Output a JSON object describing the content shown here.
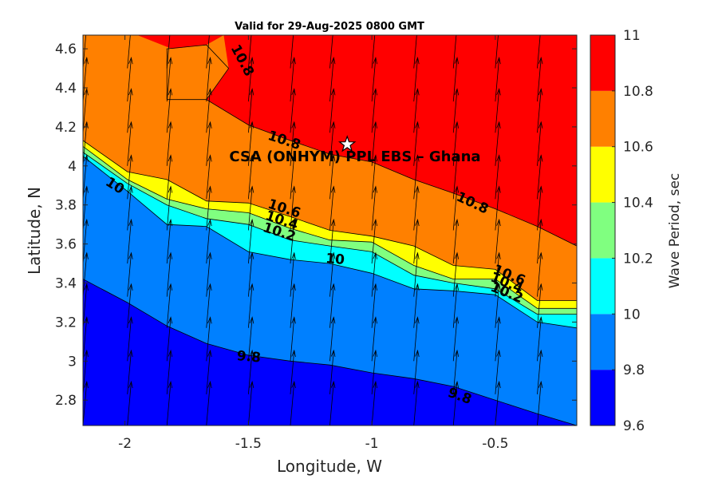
{
  "chart_data": {
    "type": "contour",
    "title": "Valid for 29-Aug-2025 0800 GMT",
    "xlabel": "Longitude, W",
    "ylabel": "Latitude, N",
    "xlim": [
      -2.17,
      -0.17
    ],
    "ylim": [
      2.67,
      4.67
    ],
    "xticks": [
      -2,
      -1.5,
      -1,
      -0.5
    ],
    "xtick_labels": [
      "-2",
      "-1.5",
      "-1",
      "-0.5"
    ],
    "yticks": [
      2.8,
      3,
      3.2,
      3.4,
      3.6,
      3.8,
      4,
      4.2,
      4.4,
      4.6
    ],
    "ytick_labels": [
      "2.8",
      "3",
      "3.2",
      "3.4",
      "3.6",
      "3.8",
      "4",
      "4.2",
      "4.4",
      "4.6"
    ],
    "colorbar": {
      "label": "Wave Period, sec",
      "levels": [
        9.6,
        9.8,
        10,
        10.2,
        10.4,
        10.6,
        10.8,
        11
      ],
      "tick_labels": [
        "9.6",
        "9.8",
        "10",
        "10.2",
        "10.4",
        "10.6",
        "10.8",
        "11"
      ],
      "colors": [
        "#0000ff",
        "#0080ff",
        "#00ffff",
        "#80ff80",
        "#ffff00",
        "#ff8000",
        "#ff0000"
      ]
    },
    "contour_boundaries": [
      {
        "level": 9.8,
        "x": [
          -2.17,
          -1.99,
          -1.83,
          -1.67,
          -1.5,
          -1.33,
          -1.17,
          -1.0,
          -0.83,
          -0.67,
          -0.5,
          -0.33,
          -0.17
        ],
        "y": [
          3.42,
          3.3,
          3.18,
          3.09,
          3.03,
          3.0,
          2.98,
          2.94,
          2.91,
          2.87,
          2.8,
          2.73,
          2.67
        ]
      },
      {
        "level": 10.0,
        "x": [
          -2.17,
          -1.99,
          -1.83,
          -1.67,
          -1.5,
          -1.33,
          -1.17,
          -1.0,
          -0.83,
          -0.67,
          -0.5,
          -0.33,
          -0.17
        ],
        "y": [
          4.05,
          3.87,
          3.7,
          3.69,
          3.56,
          3.52,
          3.5,
          3.45,
          3.37,
          3.36,
          3.34,
          3.2,
          3.17
        ]
      },
      {
        "level": 10.2,
        "x": [
          -2.17,
          -1.99,
          -1.83,
          -1.67,
          -1.5,
          -1.33,
          -1.17,
          -1.0,
          -0.83,
          -0.67,
          -0.5,
          -0.33,
          -0.17
        ],
        "y": [
          4.07,
          3.91,
          3.8,
          3.73,
          3.7,
          3.62,
          3.59,
          3.56,
          3.44,
          3.4,
          3.37,
          3.24,
          3.24
        ]
      },
      {
        "level": 10.4,
        "x": [
          -2.17,
          -1.99,
          -1.83,
          -1.67,
          -1.5,
          -1.33,
          -1.17,
          -1.0,
          -0.83,
          -0.67,
          -0.5,
          -0.33,
          -0.17
        ],
        "y": [
          4.1,
          3.93,
          3.83,
          3.78,
          3.76,
          3.68,
          3.62,
          3.61,
          3.49,
          3.42,
          3.42,
          3.27,
          3.27
        ]
      },
      {
        "level": 10.6,
        "x": [
          -2.17,
          -1.99,
          -1.83,
          -1.67,
          -1.5,
          -1.33,
          -1.17,
          -1.0,
          -0.83,
          -0.67,
          -0.5,
          -0.33,
          -0.17
        ],
        "y": [
          4.13,
          3.97,
          3.93,
          3.82,
          3.81,
          3.74,
          3.67,
          3.64,
          3.59,
          3.49,
          3.47,
          3.31,
          3.31
        ]
      },
      {
        "level": 10.8,
        "x": [
          -1.67,
          -1.5,
          -1.33,
          -1.17,
          -1.0,
          -0.83,
          -0.67,
          -0.5,
          -0.33,
          -0.17
        ],
        "y": [
          4.34,
          4.21,
          4.13,
          4.06,
          4.02,
          3.93,
          3.86,
          3.78,
          3.69,
          3.59
        ]
      }
    ],
    "contour_labels": [
      {
        "text": "10.8",
        "x": -1.54,
        "y": 4.53,
        "angle": 62
      },
      {
        "text": "10.8",
        "x": -1.36,
        "y": 4.11,
        "angle": 18
      },
      {
        "text": "10.8",
        "x": -0.6,
        "y": 3.79,
        "angle": 25
      },
      {
        "text": "10",
        "x": -2.05,
        "y": 3.88,
        "angle": 32
      },
      {
        "text": "10.6",
        "x": -1.36,
        "y": 3.76,
        "angle": 18
      },
      {
        "text": "10.4",
        "x": -1.37,
        "y": 3.7,
        "angle": 18
      },
      {
        "text": "10.2",
        "x": -1.38,
        "y": 3.64,
        "angle": 18
      },
      {
        "text": "10",
        "x": -1.15,
        "y": 3.5,
        "angle": 5
      },
      {
        "text": "10.6",
        "x": -0.45,
        "y": 3.42,
        "angle": 22
      },
      {
        "text": "10.4",
        "x": -0.46,
        "y": 3.38,
        "angle": 22
      },
      {
        "text": "10.2",
        "x": -0.46,
        "y": 3.33,
        "angle": 22
      },
      {
        "text": "9.8",
        "x": -1.5,
        "y": 3.0,
        "angle": 5
      },
      {
        "text": "9.8",
        "x": -0.65,
        "y": 2.8,
        "angle": 20
      }
    ],
    "vectors": {
      "x": [
        -2.17,
        -1.99,
        -1.83,
        -1.67,
        -1.5,
        -1.33,
        -1.17,
        -1.0,
        -0.83,
        -0.67,
        -0.5,
        -0.33,
        -0.17
      ],
      "y": [
        2.67,
        2.83,
        3.0,
        3.17,
        3.33,
        3.5,
        3.67,
        3.83,
        4.0,
        4.17,
        4.33,
        4.5,
        4.67
      ],
      "direction_deg": 5
    },
    "site": {
      "label": "CSA (ONHYM) PPL EBS  – Ghana",
      "x": -1.1,
      "y": 4.11
    }
  }
}
